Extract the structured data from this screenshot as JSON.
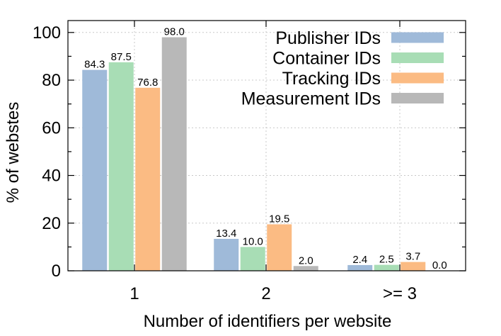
{
  "chart_data": {
    "type": "bar",
    "xlabel": "Number of identifiers per website",
    "ylabel": "% of webstes",
    "categories": [
      "1",
      "2",
      ">= 3"
    ],
    "ylim": [
      0,
      105
    ],
    "yticks": [
      0,
      20,
      40,
      60,
      80,
      100
    ],
    "grid": true,
    "legend_position": "top-right",
    "series": [
      {
        "name": "Publisher IDs",
        "color": "#9fbad9",
        "values": [
          84.3,
          13.4,
          2.4
        ],
        "labels": [
          "84.3",
          "13.4",
          "2.4"
        ]
      },
      {
        "name": "Container IDs",
        "color": "#a8ddb5",
        "values": [
          87.5,
          10.0,
          2.5
        ],
        "labels": [
          "87.5",
          "10.0",
          "2.5"
        ]
      },
      {
        "name": "Tracking IDs",
        "color": "#fbbb83",
        "values": [
          76.8,
          19.5,
          3.7
        ],
        "labels": [
          "76.8",
          "19.5",
          "3.7"
        ]
      },
      {
        "name": "Measurement IDs",
        "color": "#b8b8b8",
        "values": [
          98.0,
          2.0,
          0.0
        ],
        "labels": [
          "98.0",
          "2.0",
          "0.0"
        ]
      }
    ]
  }
}
